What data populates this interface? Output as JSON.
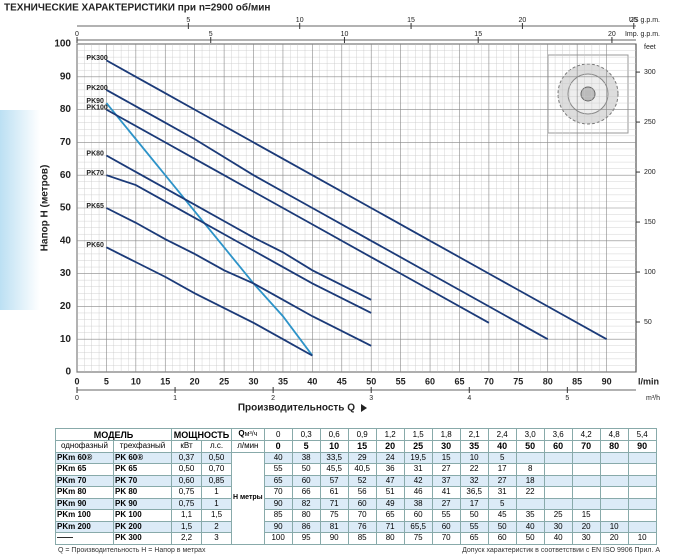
{
  "chart_data": {
    "type": "line",
    "title": "ТЕХНИЧЕСКИЕ ХАРАКТЕРИСТИКИ при n=2900 об/мин",
    "y_label": "Напор H (метров)",
    "x_label": "Производительность Q",
    "x_unit": "l/min",
    "y2_unit": "feet",
    "x": [
      5,
      10,
      15,
      20,
      25,
      30,
      35,
      40,
      50,
      60,
      70,
      80,
      90
    ],
    "xlim": [
      0,
      95
    ],
    "xticks": [
      0,
      5,
      10,
      15,
      20,
      25,
      30,
      35,
      40,
      45,
      50,
      55,
      60,
      65,
      70,
      75,
      80,
      85,
      90
    ],
    "ylim": [
      0,
      100
    ],
    "yticks": [
      0,
      10,
      20,
      30,
      40,
      50,
      60,
      70,
      80,
      90,
      100
    ],
    "y2lim": [
      0,
      328.08
    ],
    "y2ticks": [
      50,
      100,
      150,
      200,
      250,
      300
    ],
    "us_gpm": {
      "unit": "US g.p.m.",
      "lim": [
        0,
        25.1
      ],
      "ticks": [
        5,
        10,
        15,
        20,
        25
      ]
    },
    "imp_gpm": {
      "unit": "Imp. g.p.m.",
      "lim": [
        0,
        20.9
      ],
      "ticks": [
        0,
        5,
        10,
        15,
        20
      ]
    },
    "m3h": {
      "unit": "m³/h",
      "lim": [
        0,
        5.7
      ],
      "ticks": [
        0,
        1,
        2,
        3,
        4,
        5
      ]
    },
    "grid": true,
    "series": [
      {
        "name": "PK300",
        "color": "#1b3a78",
        "values": [
          95,
          90,
          85,
          80,
          75,
          70,
          65,
          60,
          50,
          40,
          30,
          20,
          10
        ]
      },
      {
        "name": "PK200",
        "color": "#1b3a78",
        "values": [
          86,
          81,
          76,
          71,
          65.5,
          60,
          55,
          50,
          40,
          30,
          20,
          10,
          null
        ]
      },
      {
        "name": "PK90",
        "color": "#2d93c8",
        "values": [
          82,
          71,
          60,
          49,
          38,
          27,
          17,
          5,
          null,
          null,
          null,
          null,
          null
        ]
      },
      {
        "name": "PK100",
        "color": "#1b3a78",
        "values": [
          80,
          75,
          70,
          65,
          60,
          55,
          50,
          45,
          35,
          25,
          15,
          null,
          null
        ]
      },
      {
        "name": "PK80",
        "color": "#1b3a78",
        "values": [
          66,
          61,
          56,
          51,
          46,
          41,
          36.5,
          31,
          22,
          null,
          null,
          null,
          null
        ]
      },
      {
        "name": "PK70",
        "color": "#1b3a78",
        "values": [
          60,
          57,
          52,
          47,
          42,
          37,
          32,
          27,
          18,
          null,
          null,
          null,
          null
        ]
      },
      {
        "name": "PK65",
        "color": "#1b3a78",
        "values": [
          50,
          45.5,
          40.5,
          36,
          31,
          27,
          22,
          17,
          8,
          null,
          null,
          null,
          null
        ]
      },
      {
        "name": "PK60",
        "color": "#1b3a78",
        "values": [
          38,
          33.5,
          29,
          24,
          19.5,
          15,
          10,
          5,
          null,
          null,
          null,
          null,
          null
        ]
      }
    ]
  },
  "table": {
    "model": "МОДЕЛЬ",
    "power": "МОЩНОСТЬ",
    "q": "Q",
    "unit_m3h": "м³/ч",
    "unit_lmin": "л/мин",
    "single": "однофазный",
    "three": "трехфазный",
    "kw": "кВт",
    "hp": "л.с.",
    "h_label": "H метры",
    "q_m3h": [
      "0",
      "0,3",
      "0,6",
      "0,9",
      "1,2",
      "1,5",
      "1,8",
      "2,1",
      "2,4",
      "3,0",
      "3,6",
      "4,2",
      "4,8",
      "5,4"
    ],
    "q_lmin": [
      "0",
      "5",
      "10",
      "15",
      "20",
      "25",
      "30",
      "35",
      "40",
      "50",
      "60",
      "70",
      "80",
      "90"
    ],
    "rows": [
      {
        "single": "PKm 60®",
        "three": "PK 60®",
        "kw": "0,37",
        "hp": "0,50",
        "h": [
          "40",
          "38",
          "33,5",
          "29",
          "24",
          "19,5",
          "15",
          "10",
          "5"
        ]
      },
      {
        "single": "PKm 65",
        "three": "PK 65",
        "kw": "0,50",
        "hp": "0,70",
        "h": [
          "55",
          "50",
          "45,5",
          "40,5",
          "36",
          "31",
          "27",
          "22",
          "17",
          "8"
        ]
      },
      {
        "single": "PKm 70",
        "three": "PK 70",
        "kw": "0,60",
        "hp": "0,85",
        "h": [
          "65",
          "60",
          "57",
          "52",
          "47",
          "42",
          "37",
          "32",
          "27",
          "18"
        ]
      },
      {
        "single": "PKm 80",
        "three": "PK 80",
        "kw": "0,75",
        "hp": "1",
        "h": [
          "70",
          "66",
          "61",
          "56",
          "51",
          "46",
          "41",
          "36,5",
          "31",
          "22"
        ]
      },
      {
        "single": "PKm 90",
        "three": "PK 90",
        "kw": "0,75",
        "hp": "1",
        "h": [
          "90",
          "82",
          "71",
          "60",
          "49",
          "38",
          "27",
          "17",
          "5"
        ]
      },
      {
        "single": "PKm 100",
        "three": "PK 100",
        "kw": "1,1",
        "hp": "1,5",
        "h": [
          "85",
          "80",
          "75",
          "70",
          "65",
          "60",
          "55",
          "50",
          "45",
          "35",
          "25",
          "15"
        ]
      },
      {
        "single": "PKm 200",
        "three": "PK 200",
        "kw": "1,5",
        "hp": "2",
        "h": [
          "90",
          "86",
          "81",
          "76",
          "71",
          "65,5",
          "60",
          "55",
          "50",
          "40",
          "30",
          "20",
          "10"
        ]
      },
      {
        "single": "——",
        "three": "PK 300",
        "kw": "2,2",
        "hp": "3",
        "h": [
          "100",
          "95",
          "90",
          "85",
          "80",
          "75",
          "70",
          "65",
          "60",
          "50",
          "40",
          "30",
          "20",
          "10"
        ]
      }
    ]
  },
  "footer": {
    "left": "Q = Производительность   H = Напор в метрах",
    "right": "Допуск характеристик в соответствии с EN ISO 9906 Прил. A"
  }
}
